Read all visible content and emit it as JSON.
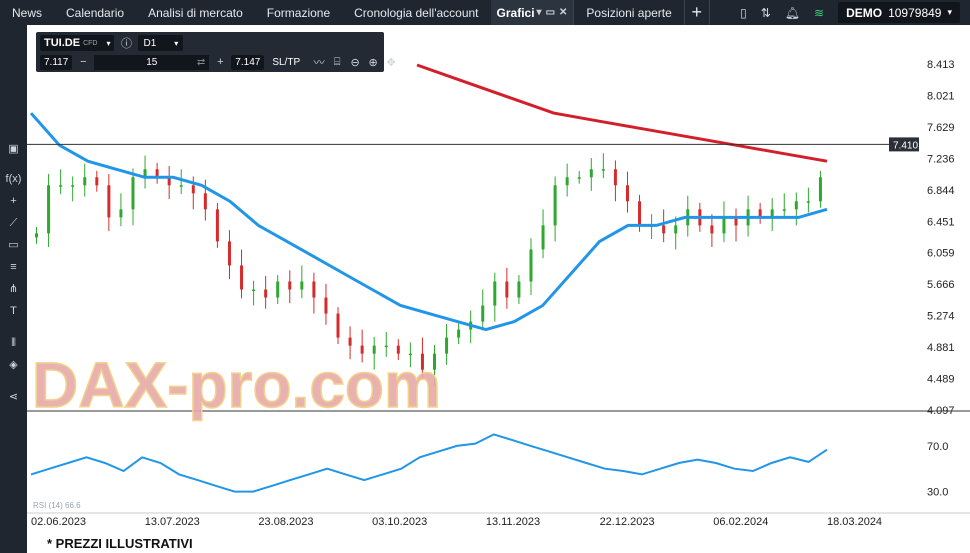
{
  "nav": {
    "tabs": [
      "News",
      "Calendario",
      "Analisi di mercato",
      "Formazione",
      "Cronologia dell'account"
    ],
    "active_tab": "Grafici",
    "positions_tab": "Posizioni aperte",
    "add_tab": "+"
  },
  "account": {
    "mode": "DEMO",
    "number": "10979849"
  },
  "instrument": {
    "symbol": "TUI.DE",
    "type": "CFD",
    "timeframe": "D1",
    "bid": "7.117",
    "quantity": "15",
    "ask": "7.147",
    "sltp": "SL/TP"
  },
  "watermark": "DAX-pro.com",
  "footer_note": "* PREZZI ILLUSTRATIVI",
  "indicator": {
    "label": "RSI (14) 66.6"
  },
  "colors": {
    "up": "#2ea82e",
    "down": "#d62b2b",
    "ma_long": "#d21f2a",
    "ma_short": "#2196e8",
    "rsi": "#2196e8"
  },
  "chart_data": {
    "type": "line",
    "x_ticks": [
      "02.06.2023",
      "13.07.2023",
      "23.08.2023",
      "03.10.2023",
      "13.11.2023",
      "22.12.2023",
      "06.02.2024",
      "18.03.2024"
    ],
    "y_ticks": [
      "8.413",
      "8.021",
      "7.629",
      "7.236",
      "6.844",
      "6.451",
      "6.059",
      "5.666",
      "5.274",
      "4.881",
      "4.489",
      "4.097"
    ],
    "ylim": [
      4.097,
      8.6
    ],
    "price_line": "7.410",
    "rsi_ticks": [
      "70.0",
      "30.0"
    ],
    "series": [
      {
        "values": [
          6.3,
          6.9,
          6.9,
          6.9,
          7.0,
          6.9,
          6.5,
          6.6,
          7.0,
          7.1,
          7.0,
          6.9,
          6.9,
          6.8,
          6.6,
          6.2,
          5.9,
          5.6,
          5.6,
          5.5,
          5.7,
          5.6,
          5.7,
          5.5,
          5.3,
          5.0,
          4.9,
          4.8,
          4.9,
          4.9,
          4.8,
          4.8,
          4.6,
          4.8,
          5.0,
          5.1,
          5.2,
          5.4,
          5.7,
          5.5,
          5.7,
          6.1,
          6.4,
          6.9,
          7.0,
          7.0,
          7.1,
          7.1,
          6.9,
          6.7,
          6.4,
          6.4,
          6.3,
          6.4,
          6.6,
          6.4,
          6.3,
          6.5,
          6.4,
          6.6,
          6.5,
          6.6,
          6.6,
          6.7,
          6.7,
          7.0
        ]
      },
      {
        "values": [
          7.8,
          7.4,
          7.2,
          7.1,
          7.0,
          7.0,
          6.9,
          6.7,
          6.4,
          6.2,
          6.0,
          5.8,
          5.6,
          5.4,
          5.3,
          5.2,
          5.1,
          5.2,
          5.4,
          5.8,
          6.2,
          6.4,
          6.4,
          6.5,
          6.5,
          6.5,
          6.5,
          6.5,
          6.6
        ]
      },
      {
        "values": [
          8.4,
          8.2,
          8.0,
          7.8,
          7.7,
          7.6,
          7.5,
          7.4,
          7.3,
          7.2
        ]
      },
      {
        "values": [
          45,
          50,
          55,
          60,
          55,
          48,
          60,
          55,
          45,
          40,
          35,
          30,
          30,
          35,
          40,
          45,
          50,
          45,
          40,
          45,
          50,
          60,
          65,
          70,
          72,
          80,
          75,
          70,
          65,
          60,
          55,
          50,
          48,
          45,
          50,
          55,
          58,
          55,
          50,
          48,
          55,
          60,
          56,
          66.6
        ]
      }
    ]
  }
}
